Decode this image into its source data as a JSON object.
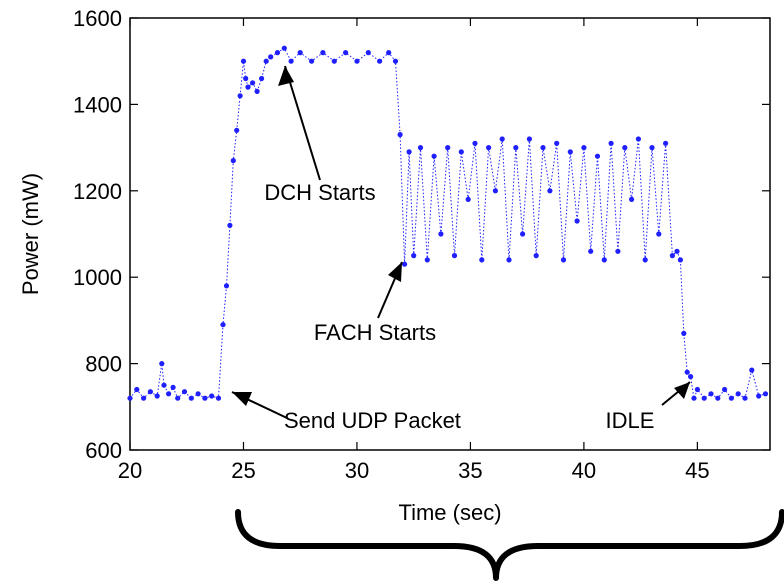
{
  "chart_data": {
    "type": "scatter",
    "xlabel": "Time (sec)",
    "ylabel": "Power (mW)",
    "xlim": [
      20,
      48.2
    ],
    "ylim": [
      600,
      1600
    ],
    "xticks": [
      20,
      25,
      30,
      35,
      40,
      45
    ],
    "yticks": [
      600,
      800,
      1000,
      1200,
      1400,
      1600
    ],
    "grid": false,
    "marker_color": "#1f1fff",
    "series": [
      {
        "values_x": [
          20.0,
          20.3,
          20.6,
          20.9,
          21.2,
          21.4,
          21.5,
          21.7,
          21.9,
          22.1,
          22.4,
          22.7,
          23.0,
          23.3,
          23.6,
          23.9,
          24.1,
          24.25,
          24.4,
          24.55,
          24.7,
          24.85,
          25.0,
          25.1,
          25.2,
          25.4,
          25.6,
          25.8,
          26.0,
          26.2,
          26.5,
          26.8,
          27.1,
          27.5,
          28.0,
          28.5,
          29.0,
          29.5,
          30.0,
          30.5,
          31.0,
          31.4,
          31.7,
          31.9,
          32.1,
          32.3,
          32.5,
          32.8,
          33.1,
          33.4,
          33.7,
          34.0,
          34.3,
          34.6,
          34.9,
          35.2,
          35.5,
          35.8,
          36.1,
          36.4,
          36.7,
          37.0,
          37.3,
          37.6,
          37.9,
          38.2,
          38.5,
          38.8,
          39.1,
          39.4,
          39.7,
          40.0,
          40.3,
          40.6,
          40.9,
          41.2,
          41.5,
          41.8,
          42.1,
          42.4,
          42.7,
          43.0,
          43.3,
          43.6,
          43.9,
          44.1,
          44.25,
          44.4,
          44.55,
          44.7,
          44.85,
          45.0,
          45.3,
          45.6,
          45.9,
          46.2,
          46.5,
          46.8,
          47.1,
          47.4,
          47.7,
          48.0
        ],
        "values_y": [
          720,
          740,
          720,
          735,
          725,
          800,
          750,
          730,
          745,
          720,
          735,
          720,
          730,
          720,
          725,
          720,
          890,
          980,
          1120,
          1270,
          1340,
          1420,
          1500,
          1460,
          1440,
          1450,
          1430,
          1460,
          1500,
          1510,
          1520,
          1530,
          1500,
          1520,
          1500,
          1520,
          1500,
          1520,
          1500,
          1520,
          1500,
          1520,
          1500,
          1330,
          1030,
          1290,
          1050,
          1300,
          1040,
          1280,
          1100,
          1300,
          1050,
          1290,
          1180,
          1310,
          1040,
          1300,
          1200,
          1320,
          1040,
          1300,
          1100,
          1320,
          1050,
          1300,
          1200,
          1310,
          1040,
          1290,
          1130,
          1300,
          1060,
          1280,
          1040,
          1310,
          1060,
          1300,
          1180,
          1320,
          1040,
          1300,
          1100,
          1310,
          1050,
          1060,
          1040,
          870,
          780,
          770,
          720,
          740,
          720,
          730,
          720,
          740,
          720,
          730,
          720,
          785,
          725,
          730
        ]
      }
    ],
    "annotations": [
      {
        "text": "DCH Starts",
        "x": 26.7,
        "y": 1510
      },
      {
        "text": "FACH Starts",
        "x": 31.9,
        "y": 1035
      },
      {
        "text": "Send UDP Packet",
        "x": 24.3,
        "y": 735
      },
      {
        "text": "IDLE",
        "x": 44.7,
        "y": 775
      }
    ]
  }
}
